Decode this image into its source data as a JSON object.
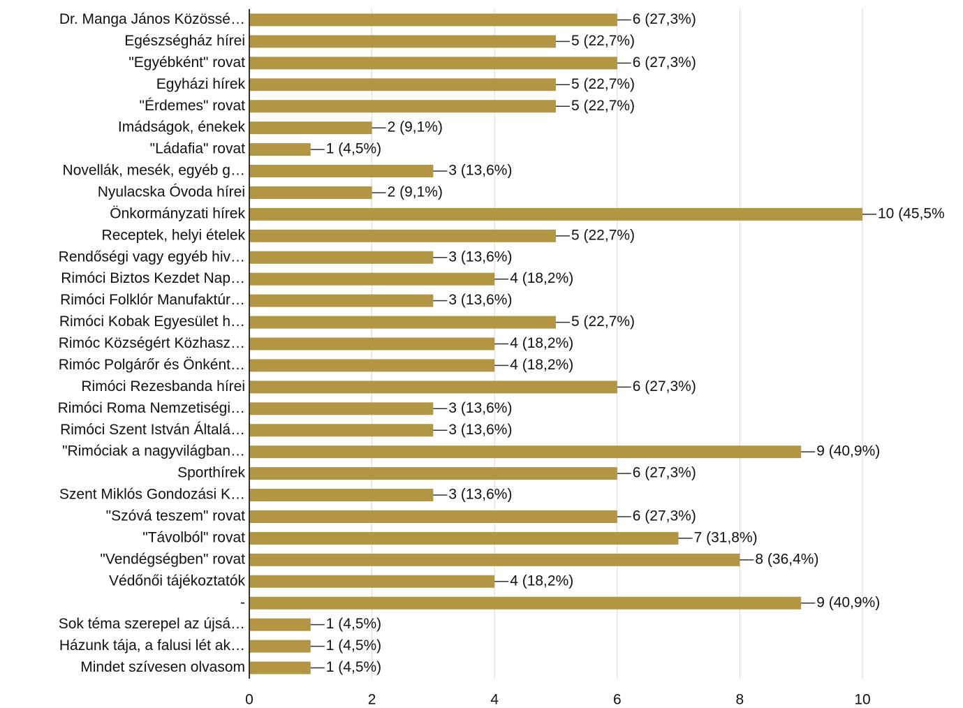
{
  "chart_data": {
    "type": "barh",
    "categories": [
      "Dr. Manga János Közössé…",
      "Egészségház hírei",
      "\"Egyébként\" rovat",
      "Egyházi hírek",
      "\"Érdemes\" rovat",
      "Imádságok, énekek",
      "\"Ládafia\" rovat",
      "Novellák, mesék, egyéb g…",
      "Nyulacska Óvoda hírei",
      "Önkormányzati hírek",
      "Receptek, helyi ételek",
      "Rendőségi vagy egyéb hiv…",
      "Rimóci Biztos Kezdet Nap…",
      "Rimóci Folklór Manufaktúr…",
      "Rimóci Kobak Egyesület h…",
      "Rimóc Községért Közhasz…",
      "Rimóc Polgárőr és Önként…",
      "Rimóci Rezesbanda hírei",
      "Rimóci Roma Nemzetiségi…",
      "Rimóci Szent István Általá…",
      "\"Rimóciak a nagyvilágban…",
      "Sporthírek",
      "Szent Miklós Gondozási K…",
      "\"Szóvá teszem\" rovat",
      "\"Távolból\" rovat",
      "\"Vendégségben\" rovat",
      "Védőnői tájékoztatók",
      "-",
      "Sok téma szerepel az újsá…",
      "Házunk tája, a falusi lét ak…",
      "Mindet szívesen olvasom"
    ],
    "values": [
      6,
      5,
      6,
      5,
      5,
      2,
      1,
      3,
      2,
      10,
      5,
      3,
      4,
      3,
      5,
      4,
      4,
      6,
      3,
      3,
      9,
      6,
      3,
      6,
      7,
      8,
      4,
      9,
      1,
      1,
      1
    ],
    "value_labels": [
      "6 (27,3%)",
      "5 (22,7%)",
      "6 (27,3%)",
      "5 (22,7%)",
      "5 (22,7%)",
      "2 (9,1%)",
      "1 (4,5%)",
      "3 (13,6%)",
      "2 (9,1%)",
      "10 (45,5%",
      "5 (22,7%)",
      "3 (13,6%)",
      "4 (18,2%)",
      "3 (13,6%)",
      "5 (22,7%)",
      "4 (18,2%)",
      "4 (18,2%)",
      "6 (27,3%)",
      "3 (13,6%)",
      "3 (13,6%)",
      "9 (40,9%)",
      "6 (27,3%)",
      "3 (13,6%)",
      "6 (27,3%)",
      "7 (31,8%)",
      "8 (36,4%)",
      "4 (18,2%)",
      "9 (40,9%)",
      "1 (4,5%)",
      "1 (4,5%)",
      "1 (4,5%)"
    ],
    "color": "#b39643",
    "xlim": [
      0,
      10
    ],
    "xticks": [
      0,
      2,
      4,
      6,
      8,
      10
    ],
    "grid": true
  }
}
